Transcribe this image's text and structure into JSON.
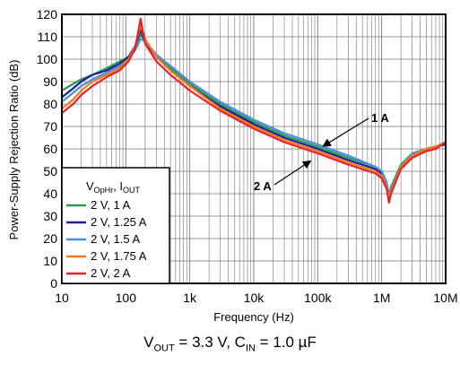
{
  "chart_data": {
    "type": "line",
    "ylabel": "Power-Supply Rejection Ratio (dB)",
    "xlabel": "Frequency (Hz)",
    "x_scale": "log",
    "xlim": [
      10,
      10000000
    ],
    "ylim": [
      0,
      120
    ],
    "x_ticks": [
      {
        "value": 10,
        "label": "10"
      },
      {
        "value": 100,
        "label": "100"
      },
      {
        "value": 1000,
        "label": "1k"
      },
      {
        "value": 10000,
        "label": "10k"
      },
      {
        "value": 100000,
        "label": "100k"
      },
      {
        "value": 1000000,
        "label": "1M"
      },
      {
        "value": 10000000,
        "label": "10M"
      }
    ],
    "y_ticks": [
      0,
      10,
      20,
      30,
      40,
      50,
      60,
      70,
      80,
      90,
      100,
      110,
      120
    ],
    "grid": true,
    "legend": {
      "title_main": "V",
      "title_sub1": "OpHr",
      "title_mid": ", I",
      "title_sub2": "OUT",
      "placement": "bottom-left"
    },
    "series": [
      {
        "name": "2 V, 1 A",
        "color": "#2e9a4f",
        "points": [
          [
            10,
            86
          ],
          [
            15,
            89
          ],
          [
            20,
            91
          ],
          [
            30,
            93
          ],
          [
            50,
            96
          ],
          [
            80,
            99
          ],
          [
            110,
            101
          ],
          [
            140,
            106
          ],
          [
            170,
            111
          ],
          [
            200,
            108
          ],
          [
            300,
            102
          ],
          [
            500,
            96
          ],
          [
            1000,
            89
          ],
          [
            3000,
            80
          ],
          [
            10000,
            72
          ],
          [
            30000,
            66
          ],
          [
            100000,
            61
          ],
          [
            300000,
            56
          ],
          [
            800000,
            52
          ],
          [
            1000000,
            50
          ],
          [
            1200000,
            45
          ],
          [
            1300000,
            39
          ],
          [
            1400000,
            43
          ],
          [
            2000000,
            53
          ],
          [
            3000000,
            58
          ],
          [
            5000000,
            60
          ],
          [
            7000000,
            61
          ],
          [
            10000000,
            63
          ]
        ]
      },
      {
        "name": "2 V, 1.25 A",
        "color": "#1a1f9a",
        "points": [
          [
            10,
            83
          ],
          [
            15,
            87
          ],
          [
            20,
            90
          ],
          [
            30,
            93
          ],
          [
            50,
            95
          ],
          [
            80,
            98
          ],
          [
            110,
            101
          ],
          [
            140,
            106
          ],
          [
            170,
            113
          ],
          [
            200,
            108
          ],
          [
            300,
            101
          ],
          [
            500,
            95
          ],
          [
            1000,
            88
          ],
          [
            3000,
            79
          ],
          [
            10000,
            71
          ],
          [
            30000,
            65
          ],
          [
            100000,
            60
          ],
          [
            300000,
            55
          ],
          [
            800000,
            51
          ],
          [
            1000000,
            49
          ],
          [
            1200000,
            44
          ],
          [
            1300000,
            38
          ],
          [
            1400000,
            42
          ],
          [
            2000000,
            52
          ],
          [
            3000000,
            57
          ],
          [
            5000000,
            60
          ],
          [
            7000000,
            61
          ],
          [
            10000000,
            62
          ]
        ]
      },
      {
        "name": "2 V, 1.5 A",
        "color": "#4a8fe0",
        "points": [
          [
            10,
            81
          ],
          [
            15,
            85
          ],
          [
            20,
            88
          ],
          [
            30,
            91
          ],
          [
            50,
            94
          ],
          [
            80,
            97
          ],
          [
            110,
            100
          ],
          [
            140,
            104
          ],
          [
            170,
            109
          ],
          [
            200,
            108
          ],
          [
            300,
            102
          ],
          [
            500,
            97
          ],
          [
            1000,
            90
          ],
          [
            3000,
            81
          ],
          [
            10000,
            73
          ],
          [
            30000,
            67
          ],
          [
            100000,
            62
          ],
          [
            300000,
            57
          ],
          [
            800000,
            52
          ],
          [
            1000000,
            50
          ],
          [
            1200000,
            45
          ],
          [
            1300000,
            38
          ],
          [
            1400000,
            42
          ],
          [
            2000000,
            52
          ],
          [
            3000000,
            58
          ],
          [
            5000000,
            60
          ],
          [
            7000000,
            61
          ],
          [
            10000000,
            63
          ]
        ]
      },
      {
        "name": "2 V, 1.75 A",
        "color": "#f07d1a",
        "points": [
          [
            10,
            78
          ],
          [
            15,
            82
          ],
          [
            20,
            86
          ],
          [
            30,
            90
          ],
          [
            50,
            93
          ],
          [
            80,
            96
          ],
          [
            110,
            100
          ],
          [
            140,
            106
          ],
          [
            170,
            115
          ],
          [
            200,
            109
          ],
          [
            300,
            101
          ],
          [
            500,
            95
          ],
          [
            1000,
            88
          ],
          [
            3000,
            78
          ],
          [
            10000,
            70
          ],
          [
            30000,
            64
          ],
          [
            100000,
            59
          ],
          [
            300000,
            54
          ],
          [
            800000,
            50
          ],
          [
            1000000,
            48
          ],
          [
            1200000,
            43
          ],
          [
            1300000,
            37
          ],
          [
            1400000,
            41
          ],
          [
            2000000,
            52
          ],
          [
            3000000,
            57
          ],
          [
            5000000,
            60
          ],
          [
            7000000,
            61
          ],
          [
            10000000,
            63
          ]
        ]
      },
      {
        "name": "2 V, 2 A",
        "color": "#e8202a",
        "points": [
          [
            10,
            76
          ],
          [
            15,
            80
          ],
          [
            20,
            84
          ],
          [
            30,
            88
          ],
          [
            50,
            92
          ],
          [
            80,
            95
          ],
          [
            110,
            99
          ],
          [
            140,
            105
          ],
          [
            170,
            118
          ],
          [
            200,
            107
          ],
          [
            300,
            99
          ],
          [
            500,
            93
          ],
          [
            1000,
            86
          ],
          [
            3000,
            77
          ],
          [
            10000,
            69
          ],
          [
            30000,
            63
          ],
          [
            100000,
            58
          ],
          [
            300000,
            53
          ],
          [
            800000,
            49
          ],
          [
            1000000,
            47
          ],
          [
            1200000,
            42
          ],
          [
            1300000,
            36
          ],
          [
            1400000,
            40
          ],
          [
            2000000,
            51
          ],
          [
            3000000,
            56
          ],
          [
            5000000,
            59
          ],
          [
            7000000,
            60
          ],
          [
            10000000,
            63
          ]
        ]
      }
    ],
    "annotations": [
      {
        "text": "1 A",
        "arrow_to": [
          100000,
          60
        ]
      },
      {
        "text": "2 A",
        "arrow_to": [
          100000,
          57
        ]
      }
    ]
  },
  "caption": {
    "v": "V",
    "v_sub": "OUT",
    "v_rest": " = 3.3 V, ",
    "c": "C",
    "c_sub": "IN",
    "c_rest": " = 1.0 µF"
  }
}
